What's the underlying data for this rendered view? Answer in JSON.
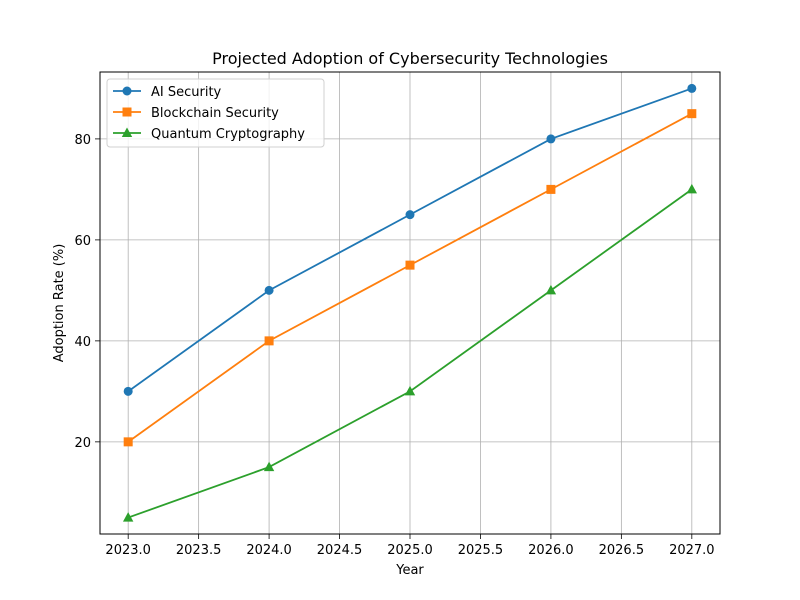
{
  "chart_data": {
    "type": "line",
    "title": "Projected Adoption of Cybersecurity Technologies",
    "xlabel": "Year",
    "ylabel": "Adoption Rate (%)",
    "x": [
      2023,
      2024,
      2025,
      2026,
      2027
    ],
    "xlim": [
      2022.8,
      2027.2
    ],
    "ylim": [
      1.75,
      93.25
    ],
    "x_ticks": [
      2023.0,
      2023.5,
      2024.0,
      2024.5,
      2025.0,
      2025.5,
      2026.0,
      2026.5,
      2027.0
    ],
    "x_tick_labels": [
      "2023.0",
      "2023.5",
      "2024.0",
      "2024.5",
      "2025.0",
      "2025.5",
      "2026.0",
      "2026.5",
      "2027.0"
    ],
    "y_ticks": [
      20,
      40,
      60,
      80
    ],
    "y_tick_labels": [
      "20",
      "40",
      "60",
      "80"
    ],
    "grid": true,
    "legend_position": "upper-left",
    "series": [
      {
        "name": "AI Security",
        "values": [
          30,
          50,
          65,
          80,
          90
        ],
        "color": "#1f77b4",
        "marker": "circle"
      },
      {
        "name": "Blockchain Security",
        "values": [
          20,
          40,
          55,
          70,
          85
        ],
        "color": "#ff7f0e",
        "marker": "square"
      },
      {
        "name": "Quantum Cryptography",
        "values": [
          5,
          15,
          30,
          50,
          70
        ],
        "color": "#2ca02c",
        "marker": "triangle"
      }
    ]
  }
}
